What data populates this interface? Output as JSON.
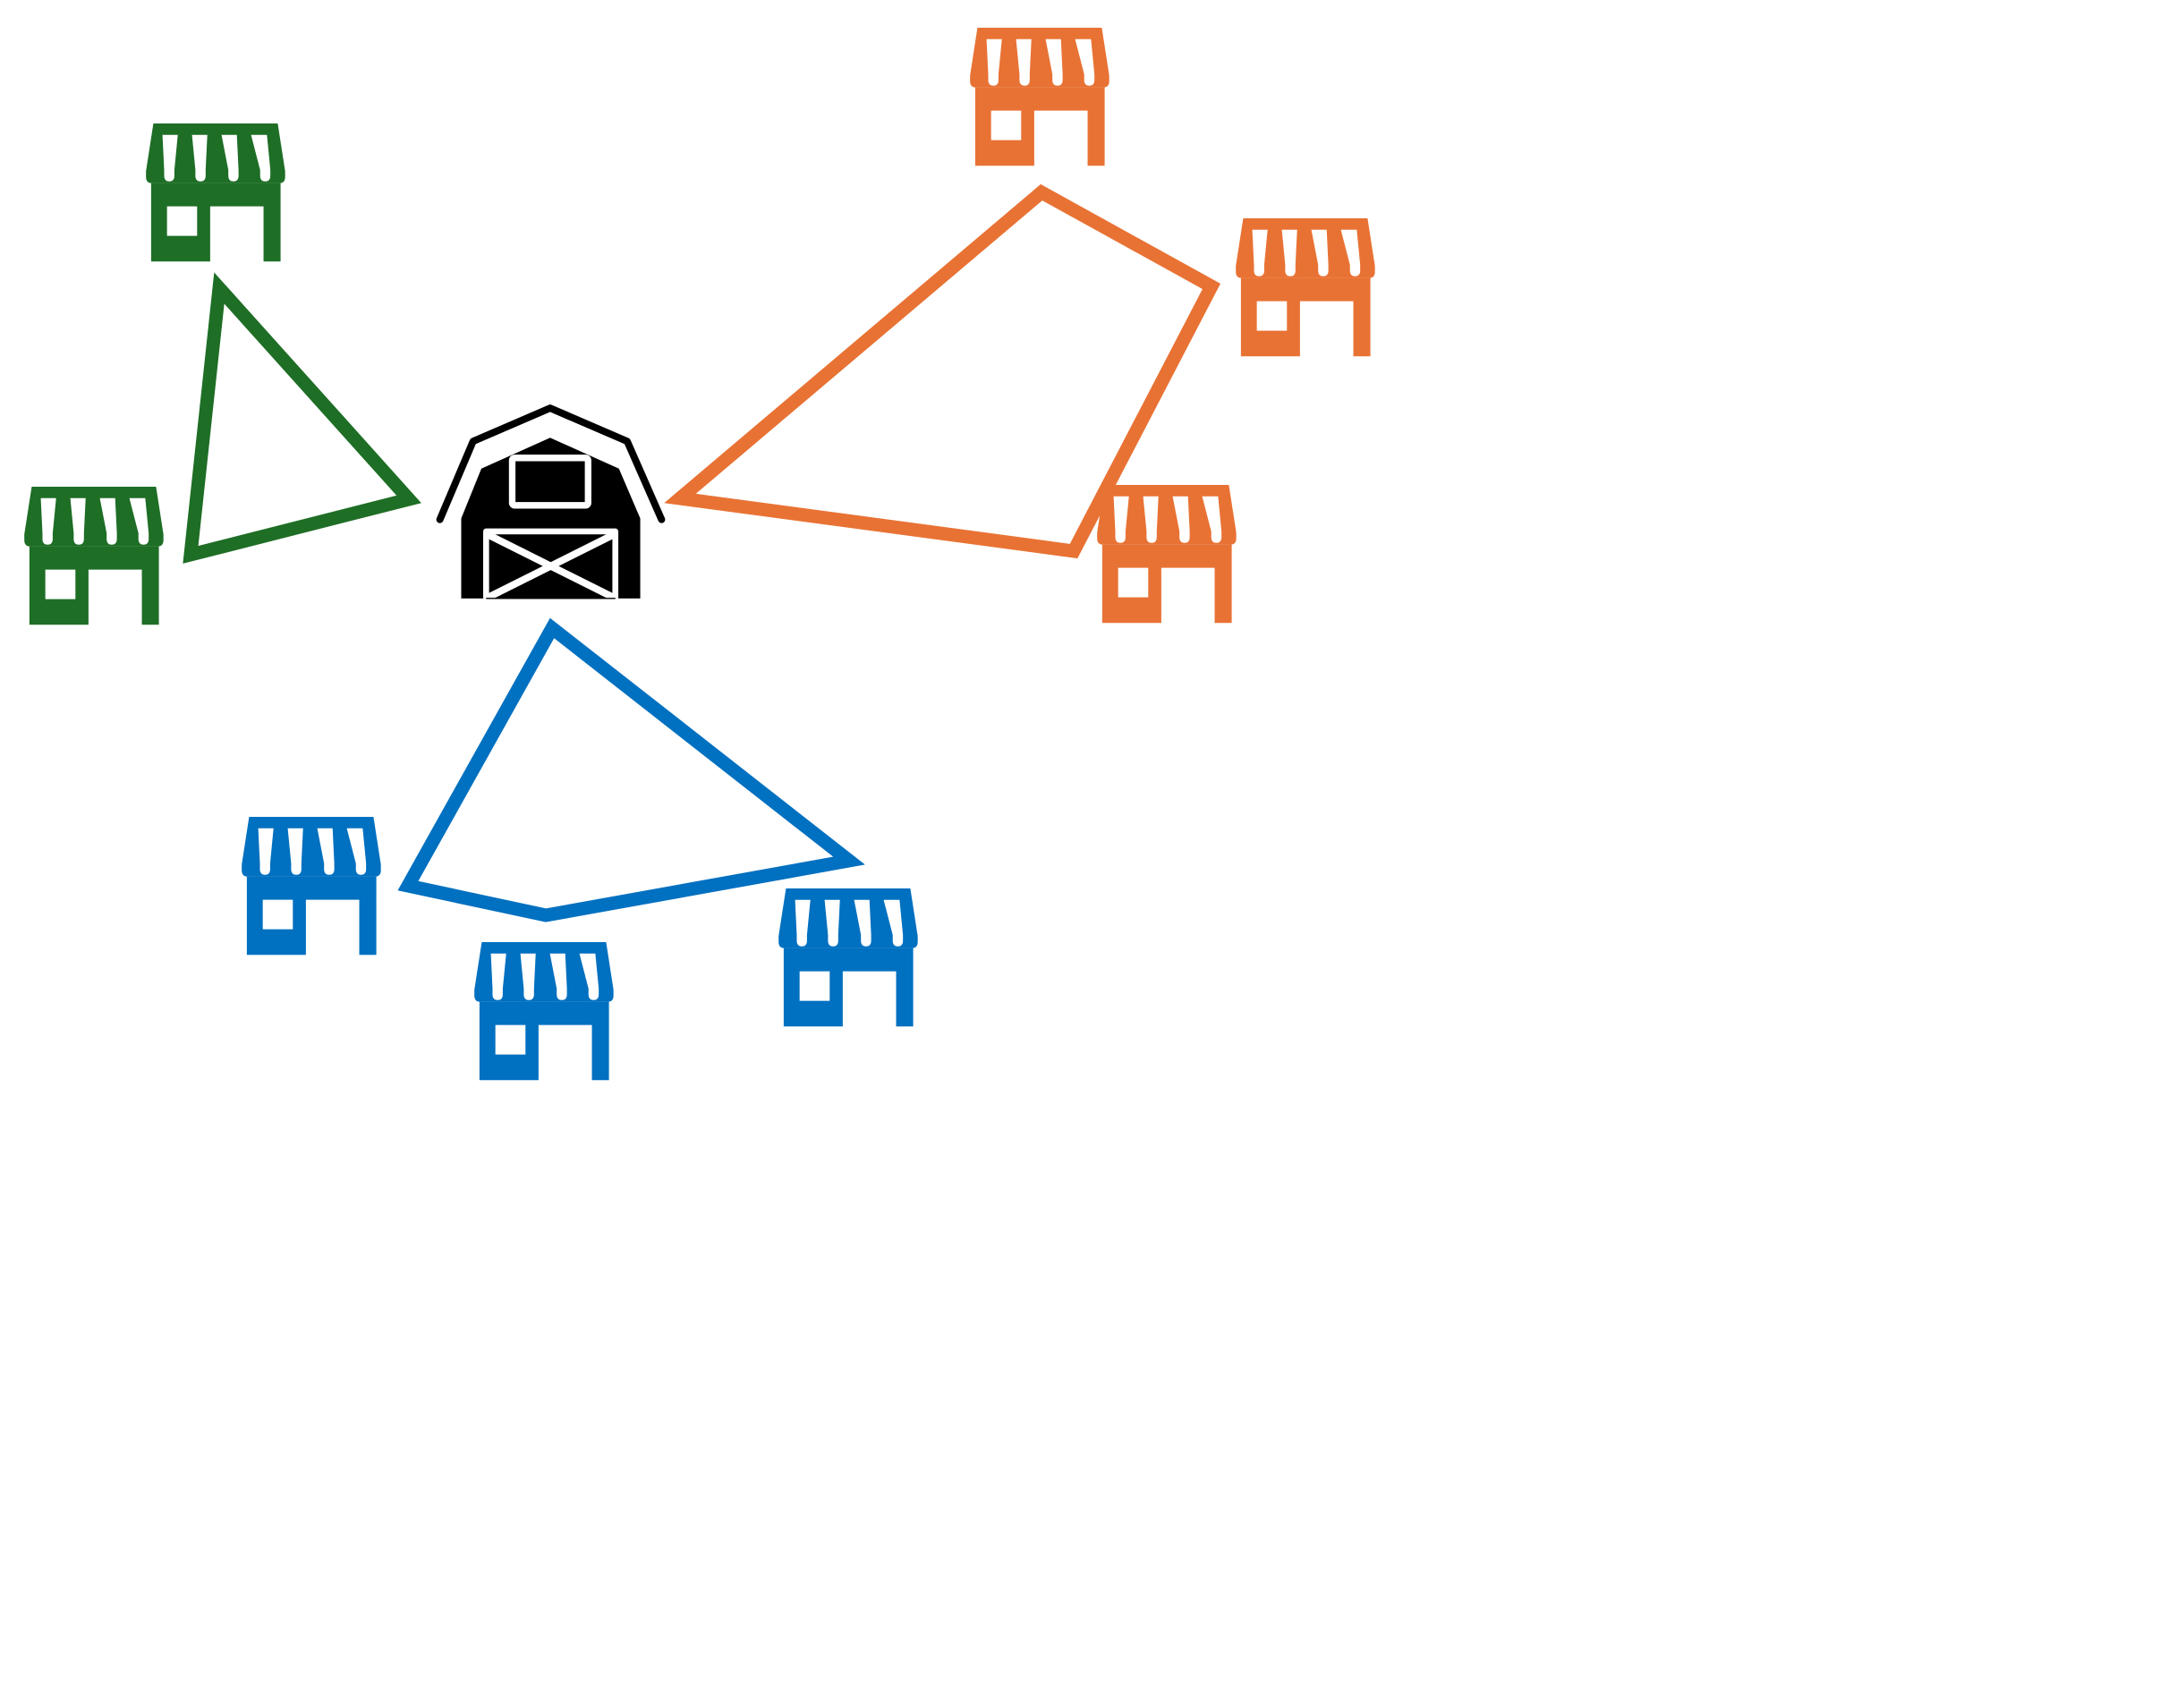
{
  "colors": {
    "green": "#1e6e26",
    "orange": "#e87234",
    "blue": "#0070c0",
    "depot": "#000000",
    "background": "#ffffff"
  },
  "depot": {
    "icon": "barn-icon",
    "color": "depot"
  },
  "routes": [
    {
      "name": "green-route",
      "color": "green",
      "stops": 2
    },
    {
      "name": "orange-route",
      "color": "orange",
      "stops": 3
    },
    {
      "name": "blue-route",
      "color": "blue",
      "stops": 3
    }
  ],
  "stores": [
    {
      "icon": "store-icon",
      "color": "green"
    },
    {
      "icon": "store-icon",
      "color": "green"
    },
    {
      "icon": "store-icon",
      "color": "orange"
    },
    {
      "icon": "store-icon",
      "color": "orange"
    },
    {
      "icon": "store-icon",
      "color": "orange"
    },
    {
      "icon": "store-icon",
      "color": "blue"
    },
    {
      "icon": "store-icon",
      "color": "blue"
    },
    {
      "icon": "store-icon",
      "color": "blue"
    }
  ]
}
